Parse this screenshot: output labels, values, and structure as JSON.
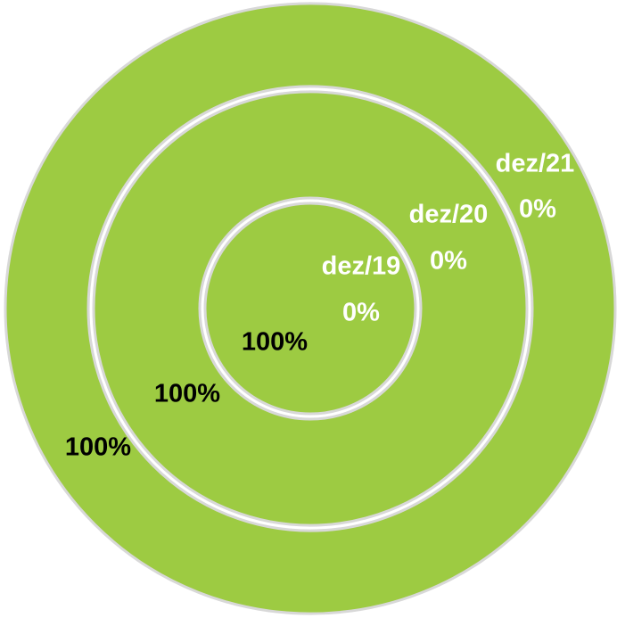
{
  "chart_data": {
    "type": "doughnut",
    "categories": [
      null,
      null
    ],
    "series": [
      {
        "name": "dez/19",
        "color": "#9dcb42",
        "values": [
          0,
          100
        ],
        "value_labels": [
          "0%",
          "100%"
        ]
      },
      {
        "name": "dez/20",
        "color": "#9dcb42",
        "values": [
          0,
          100
        ],
        "value_labels": [
          "0%",
          "100%"
        ]
      },
      {
        "name": "dez/21",
        "color": "#9dcb42",
        "values": [
          0,
          100
        ],
        "value_labels": [
          "0%",
          "100%"
        ]
      }
    ]
  }
}
